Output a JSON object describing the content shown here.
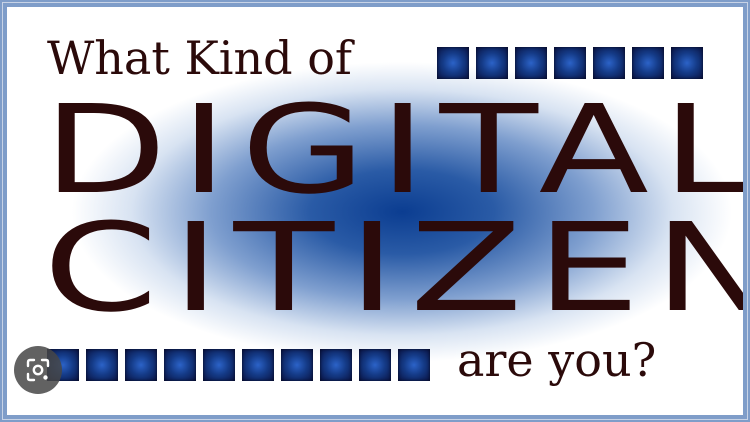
{
  "poster": {
    "top_line": "What Kind of",
    "word_digital": "DIGITAL",
    "word_citizen": "CITIZEN",
    "bottom_line": "are you?"
  },
  "colors": {
    "text": "#2b0a0a",
    "border": "#7f9dc9",
    "glow_center": "#0b3d91",
    "square": "#143a86"
  },
  "icons": {
    "lens_button": "visual-search-icon"
  }
}
